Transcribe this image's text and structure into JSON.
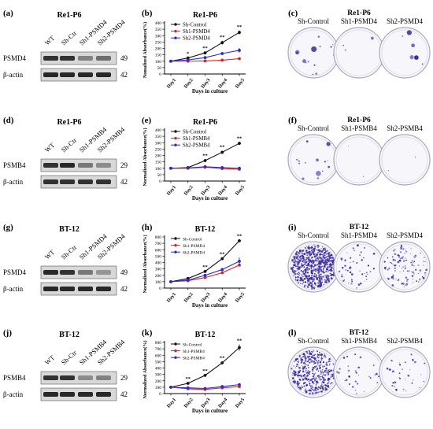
{
  "panels": [
    {
      "cell_line": "Re1-P6",
      "target": "PSMD4",
      "western": {
        "panel_letter": "(a)",
        "title": "Re1-P6",
        "lanes": [
          "WT",
          "Sh-Ctr",
          "Sh1-PSMD4",
          "Sh2-PSMD4"
        ],
        "rows": [
          {
            "label": "PSMD4",
            "kda": "49",
            "intensities": [
              0.85,
              0.85,
              0.45,
              0.55
            ]
          },
          {
            "label": "β-actin",
            "kda": "42",
            "intensities": [
              0.9,
              0.9,
              0.9,
              0.9
            ]
          }
        ]
      },
      "colony": {
        "panel_letter": "(c)",
        "title": "Re1-P6",
        "labels": [
          "Sh-Control",
          "Sh1-PSMD4",
          "Sh2-PSMD4"
        ],
        "density": [
          14,
          3,
          6
        ]
      }
    },
    {
      "cell_line": "Re1-P6",
      "target": "PSMB4",
      "western": {
        "panel_letter": "(d)",
        "title": "Re1-P6",
        "lanes": [
          "WT",
          "Sh-Ctr",
          "Sh1-PSMB4",
          "Sh2-PSMB4"
        ],
        "rows": [
          {
            "label": "PSMB4",
            "kda": "29",
            "intensities": [
              0.85,
              0.9,
              0.5,
              0.4
            ]
          },
          {
            "label": "β-actin",
            "kda": "42",
            "intensities": [
              0.85,
              0.85,
              0.85,
              0.85
            ]
          }
        ]
      },
      "colony": {
        "panel_letter": "(f)",
        "title": "Re1-P6",
        "labels": [
          "Sh-Control",
          "Sh1-PSMB4",
          "Sh2-PSMB4"
        ],
        "density": [
          14,
          2,
          2
        ]
      }
    },
    {
      "cell_line": "BT-12",
      "target": "PSMD4",
      "western": {
        "panel_letter": "(g)",
        "title": "BT-12",
        "lanes": [
          "WT",
          "Sh-Ctr",
          "Sh1-PSMD4",
          "Sh2-PSMD4"
        ],
        "rows": [
          {
            "label": "PSMD4",
            "kda": "49",
            "intensities": [
              0.9,
              0.85,
              0.5,
              0.35
            ]
          },
          {
            "label": "β-actin",
            "kda": "42",
            "intensities": [
              0.9,
              0.9,
              0.9,
              0.9
            ]
          }
        ]
      },
      "colony": {
        "panel_letter": "(i)",
        "title": "BT-12",
        "labels": [
          "Sh-Control",
          "Sh1-PSMD4",
          "Sh2-PSMD4"
        ],
        "density": [
          700,
          50,
          110
        ]
      }
    },
    {
      "cell_line": "BT-12",
      "target": "PSMB4",
      "western": {
        "panel_letter": "(j)",
        "title": "BT-12",
        "lanes": [
          "WT",
          "Sh-Ctr",
          "Sh1-PSMB4",
          "Sh2-PSMB4"
        ],
        "rows": [
          {
            "label": "PSMB4",
            "kda": "29",
            "intensities": [
              0.85,
              0.85,
              0.4,
              0.45
            ]
          },
          {
            "label": "β-actin",
            "kda": "42",
            "intensities": [
              0.9,
              0.9,
              0.9,
              0.9
            ]
          }
        ]
      },
      "colony": {
        "panel_letter": "(l)",
        "title": "BT-12",
        "labels": [
          "Sh-Control",
          "Sh1-PSMB4",
          "Sh2-PSMB4"
        ],
        "density": [
          420,
          30,
          35
        ]
      }
    }
  ],
  "colors": {
    "control": "#111111",
    "sh1": "#e02020",
    "sh2": "#2a2ad0",
    "colony": "#3b2c9a"
  },
  "chart_data": [
    {
      "panel_letter": "(b)",
      "type": "line",
      "title": "Re1-P6",
      "xlabel": "Days in culture",
      "ylabel": "Nomalized Absorbance(%)",
      "categories": [
        "Day1",
        "Day2",
        "Day3",
        "Day4",
        "Day5"
      ],
      "ylim": [
        0,
        400
      ],
      "yticks": [
        0,
        50,
        100,
        150,
        200,
        250,
        300,
        350,
        400
      ],
      "legend_position": "top-left",
      "series": [
        {
          "name": "Sh-Control",
          "color": "#111111",
          "values": [
            100,
            125,
            165,
            245,
            325
          ],
          "errors": [
            4,
            5,
            8,
            15,
            15
          ]
        },
        {
          "name": "Sh1-PSMD4",
          "color": "#e02020",
          "values": [
            100,
            100,
            102,
            108,
            120
          ],
          "errors": [
            3,
            3,
            4,
            5,
            6
          ]
        },
        {
          "name": "Sh2-PSMD4",
          "color": "#2a2ad0",
          "values": [
            100,
            110,
            128,
            160,
            185
          ],
          "errors": [
            3,
            5,
            6,
            12,
            18
          ]
        }
      ],
      "significance": [
        "",
        "*",
        "**",
        "**",
        "**"
      ]
    },
    {
      "panel_letter": "(e)",
      "type": "line",
      "title": "Re1-P6",
      "xlabel": "Days in culture",
      "ylabel": "Normalized Absorbance(%)",
      "categories": [
        "Day1",
        "Day2",
        "Day3",
        "Day4",
        "Day5"
      ],
      "ylim": [
        0,
        400
      ],
      "yticks": [
        0,
        50,
        100,
        150,
        200,
        250,
        300,
        350,
        400
      ],
      "legend_position": "top-left",
      "series": [
        {
          "name": "Sh-Control",
          "color": "#111111",
          "values": [
            100,
            105,
            160,
            225,
            295
          ],
          "errors": [
            3,
            5,
            10,
            12,
            10
          ]
        },
        {
          "name": "Sh1-PSMB4",
          "color": "#e02020",
          "values": [
            100,
            100,
            108,
            98,
            92
          ],
          "errors": [
            3,
            3,
            5,
            6,
            6
          ]
        },
        {
          "name": "Sh2-PSMB4",
          "color": "#2a2ad0",
          "values": [
            100,
            102,
            112,
            105,
            100
          ],
          "errors": [
            3,
            4,
            6,
            8,
            12
          ]
        }
      ],
      "significance": [
        "",
        "",
        "**",
        "**",
        "**"
      ]
    },
    {
      "panel_letter": "(h)",
      "type": "line",
      "title": "BT-12",
      "xlabel": "Days in culture",
      "ylabel": "Normalized Absorbance(%)",
      "categories": [
        "Day1",
        "Day2",
        "Day3",
        "Day4",
        "Day5"
      ],
      "ylim": [
        0,
        800
      ],
      "yticks": [
        0,
        100,
        200,
        300,
        400,
        500,
        600,
        700,
        800
      ],
      "legend_position": "top-left",
      "series": [
        {
          "name": "Sh-Control",
          "color": "#111111",
          "values": [
            100,
            150,
            260,
            460,
            740
          ],
          "errors": [
            5,
            8,
            12,
            15,
            15
          ]
        },
        {
          "name": "Sh1-PSMD4",
          "color": "#e02020",
          "values": [
            100,
            115,
            165,
            240,
            360
          ],
          "errors": [
            5,
            6,
            10,
            15,
            25
          ]
        },
        {
          "name": "Sh2-PSMD4",
          "color": "#2a2ad0",
          "values": [
            100,
            125,
            200,
            290,
            420
          ],
          "errors": [
            5,
            8,
            12,
            25,
            60
          ]
        }
      ],
      "significance": [
        "",
        "",
        "**",
        "**",
        "**"
      ]
    },
    {
      "panel_letter": "(k)",
      "type": "line",
      "title": "BT-12",
      "xlabel": "Days in culture",
      "ylabel": "Normalized Absorbance(%)",
      "categories": [
        "Day1",
        "Day2",
        "Day3",
        "Day4",
        "Day5"
      ],
      "ylim": [
        0,
        800
      ],
      "yticks": [
        0,
        100,
        200,
        300,
        400,
        500,
        600,
        700,
        800
      ],
      "legend_position": "top-left",
      "series": [
        {
          "name": "Sh-Control",
          "color": "#111111",
          "values": [
            100,
            160,
            285,
            480,
            720
          ],
          "errors": [
            5,
            10,
            12,
            20,
            50
          ]
        },
        {
          "name": "Sh1-PSMB4",
          "color": "#e02020",
          "values": [
            100,
            75,
            65,
            90,
            110
          ],
          "errors": [
            5,
            8,
            8,
            10,
            12
          ]
        },
        {
          "name": "Sh2-PSMB4",
          "color": "#2a2ad0",
          "values": [
            100,
            90,
            80,
            110,
            140
          ],
          "errors": [
            5,
            8,
            10,
            12,
            15
          ]
        }
      ],
      "significance": [
        "",
        "**",
        "**",
        "**",
        "**"
      ]
    }
  ]
}
